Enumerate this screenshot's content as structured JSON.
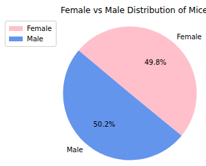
{
  "chart_data": {
    "type": "pie",
    "title": "Female vs Male Distribution of Mice",
    "categories": [
      "Female",
      "Male"
    ],
    "values": [
      49.8,
      50.2
    ],
    "value_labels": [
      "49.8%",
      "50.2%"
    ],
    "colors": [
      "#ffc0cb",
      "#6495ed"
    ],
    "data_labels": true,
    "legend": "upper left"
  }
}
